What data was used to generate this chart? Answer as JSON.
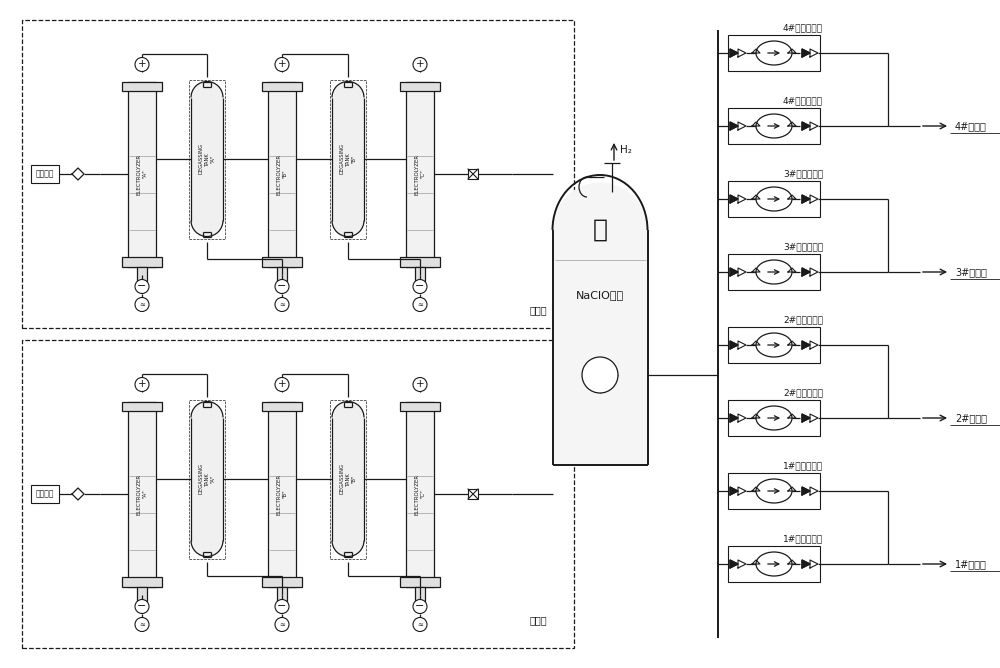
{
  "bg_color": "#ffffff",
  "lc": "#1a1a1a",
  "seawater_label": "海水入口",
  "electrolytic_label": "电解槽",
  "naclo_label": "NaClO储罐",
  "h2_label": "H₂",
  "pump_labels": [
    "4#连续加药泵",
    "4#冲击加药泵",
    "3#连续加药泵",
    "3#冲击加药泵",
    "2#连续加药泵",
    "2#冲击加药泵",
    "1#连续加药泵",
    "1#冲击加药泵"
  ],
  "outlet_labels": [
    "4#加药点",
    "3#加药点",
    "2#加药点",
    "1#加药点"
  ],
  "el_labels": [
    "\"A\"",
    "\"B\"",
    "\"C\""
  ],
  "dt_labels": [
    "\"A\"",
    "\"B\""
  ]
}
